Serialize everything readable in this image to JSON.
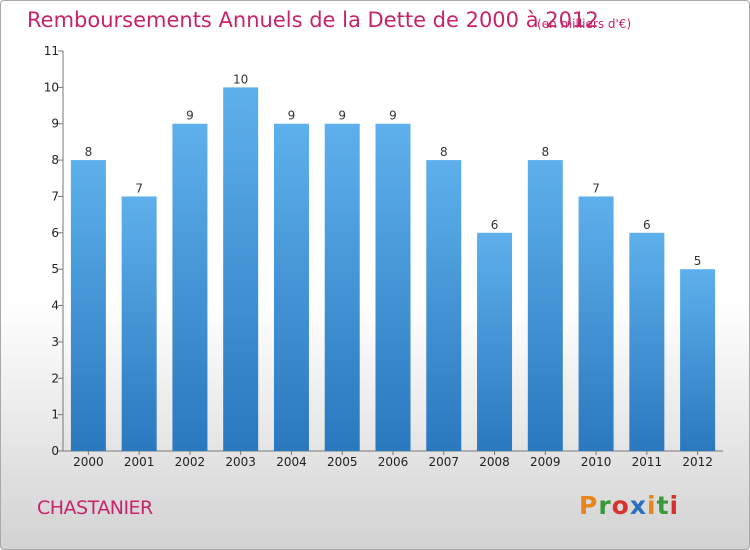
{
  "header": {
    "title": "Remboursements Annuels de la Dette de 2000 à 2012",
    "units": "(en milliers d'€)"
  },
  "footer": {
    "commune": "CHASTANIER",
    "logo_text": "Proxiti",
    "logo_colors": [
      "#e8851a",
      "#3a9a3a",
      "#d6342a",
      "#2a6fc0",
      "#e8851a",
      "#3a9a3a",
      "#d6342a"
    ]
  },
  "colors": {
    "bar_top": "#5eb0ec",
    "bar_bottom": "#2a78be",
    "accent": "#c8236a"
  },
  "chart_data": {
    "type": "bar",
    "title": "Remboursements Annuels de la Dette de 2000 à 2012",
    "units": "(en milliers d'€)",
    "categories": [
      "2000",
      "2001",
      "2002",
      "2003",
      "2004",
      "2005",
      "2006",
      "2007",
      "2008",
      "2009",
      "2010",
      "2011",
      "2012"
    ],
    "values": [
      8,
      7,
      9,
      10,
      9,
      9,
      9,
      8,
      6,
      8,
      7,
      6,
      5
    ],
    "yticks": [
      0,
      1,
      2,
      3,
      4,
      5,
      6,
      7,
      8,
      9,
      10,
      11
    ],
    "ylim": [
      0,
      11
    ],
    "grid": false,
    "legend": "none"
  }
}
